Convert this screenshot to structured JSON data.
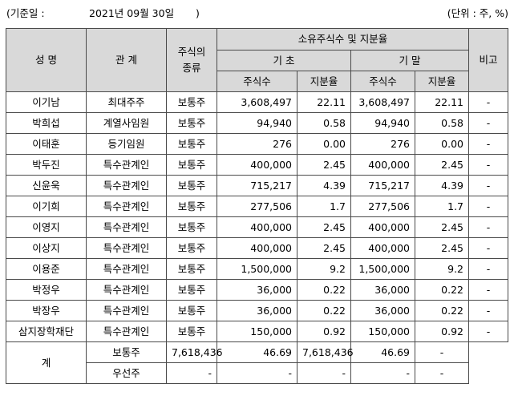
{
  "caption": {
    "base_date_label": "(기준일 :",
    "base_date_value": "2021년 09월 30일",
    "base_date_close": ")",
    "unit": "(단위 : 주, %)"
  },
  "header": {
    "name": "성 명",
    "relation": "관 계",
    "stock_type": "주식의\n종류",
    "holdings": "소유주식수 및 지분율",
    "begin": "기 초",
    "end": "기 말",
    "shares": "주식수",
    "ratio": "지분율",
    "note": "비고"
  },
  "rows": [
    {
      "name": "이기남",
      "relation": "최대주주",
      "type": "보통주",
      "begin_shares": "3,608,497",
      "begin_ratio": "22.11",
      "end_shares": "3,608,497",
      "end_ratio": "22.11",
      "note": "-"
    },
    {
      "name": "박희섭",
      "relation": "계열사임원",
      "type": "보통주",
      "begin_shares": "94,940",
      "begin_ratio": "0.58",
      "end_shares": "94,940",
      "end_ratio": "0.58",
      "note": "-"
    },
    {
      "name": "이태훈",
      "relation": "등기임원",
      "type": "보통주",
      "begin_shares": "276",
      "begin_ratio": "0.00",
      "end_shares": "276",
      "end_ratio": "0.00",
      "note": "-"
    },
    {
      "name": "박두진",
      "relation": "특수관계인",
      "type": "보통주",
      "begin_shares": "400,000",
      "begin_ratio": "2.45",
      "end_shares": "400,000",
      "end_ratio": "2.45",
      "note": "-"
    },
    {
      "name": "신윤욱",
      "relation": "특수관계인",
      "type": "보통주",
      "begin_shares": "715,217",
      "begin_ratio": "4.39",
      "end_shares": "715,217",
      "end_ratio": "4.39",
      "note": "-"
    },
    {
      "name": "이기희",
      "relation": "특수관계인",
      "type": "보통주",
      "begin_shares": "277,506",
      "begin_ratio": "1.7",
      "end_shares": "277,506",
      "end_ratio": "1.7",
      "note": "-"
    },
    {
      "name": "이영지",
      "relation": "특수관계인",
      "type": "보통주",
      "begin_shares": "400,000",
      "begin_ratio": "2.45",
      "end_shares": "400,000",
      "end_ratio": "2.45",
      "note": "-"
    },
    {
      "name": "이상지",
      "relation": "특수관계인",
      "type": "보통주",
      "begin_shares": "400,000",
      "begin_ratio": "2.45",
      "end_shares": "400,000",
      "end_ratio": "2.45",
      "note": "-"
    },
    {
      "name": "이용준",
      "relation": "특수관계인",
      "type": "보통주",
      "begin_shares": "1,500,000",
      "begin_ratio": "9.2",
      "end_shares": "1,500,000",
      "end_ratio": "9.2",
      "note": "-"
    },
    {
      "name": "박정우",
      "relation": "특수관계인",
      "type": "보통주",
      "begin_shares": "36,000",
      "begin_ratio": "0.22",
      "end_shares": "36,000",
      "end_ratio": "0.22",
      "note": "-"
    },
    {
      "name": "박장우",
      "relation": "특수관계인",
      "type": "보통주",
      "begin_shares": "36,000",
      "begin_ratio": "0.22",
      "end_shares": "36,000",
      "end_ratio": "0.22",
      "note": "-"
    },
    {
      "name": "삼지장학재단",
      "relation": "특수관계인",
      "type": "보통주",
      "begin_shares": "150,000",
      "begin_ratio": "0.92",
      "end_shares": "150,000",
      "end_ratio": "0.92",
      "note": "-"
    }
  ],
  "total": {
    "label": "계",
    "common": {
      "type": "보통주",
      "begin_shares": "7,618,436",
      "begin_ratio": "46.69",
      "end_shares": "7,618,436",
      "end_ratio": "46.69",
      "note": "-"
    },
    "preferred": {
      "type": "우선주",
      "begin_shares": "-",
      "begin_ratio": "-",
      "end_shares": "-",
      "end_ratio": "-",
      "note": "-"
    }
  }
}
